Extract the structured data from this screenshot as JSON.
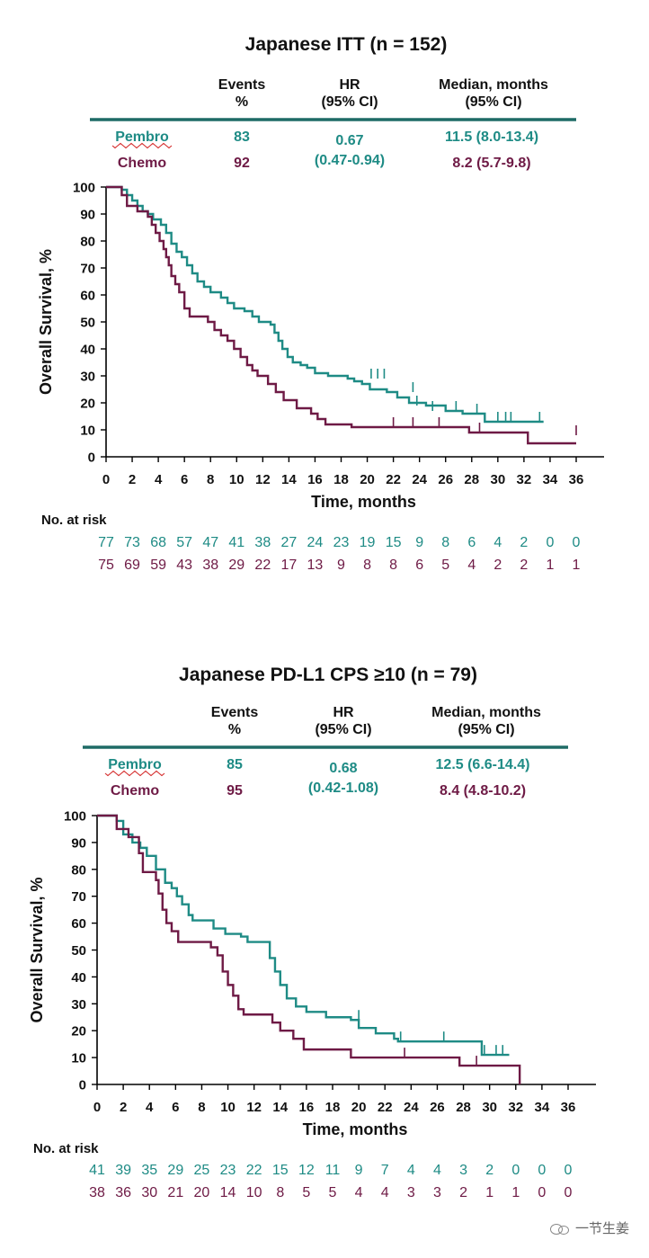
{
  "colors": {
    "pembro": "#1e8b85",
    "chemo": "#6e1a45",
    "rule": "#1e6b66",
    "text": "#111111"
  },
  "chart_data": [
    {
      "type": "line",
      "title": "Japanese ITT (n = 152)",
      "ylabel": "Overall Survival, %",
      "xlabel": "Time, months",
      "xlim": [
        0,
        36
      ],
      "ylim": [
        0,
        100
      ],
      "xticks": [
        "0",
        "2",
        "4",
        "6",
        "8",
        "10",
        "12",
        "14",
        "16",
        "18",
        "20",
        "22",
        "24",
        "26",
        "28",
        "30",
        "32",
        "34",
        "36"
      ],
      "yticks": [
        "0",
        "10",
        "20",
        "30",
        "40",
        "50",
        "60",
        "70",
        "80",
        "90",
        "100"
      ],
      "table": {
        "headers": {
          "events": "Events\n%",
          "hr": "HR\n(95% CI)",
          "median": "Median, months\n(95% CI)"
        },
        "hr_value": "0.67",
        "hr_ci": "(0.47-0.94)",
        "rows": [
          {
            "name": "Pembro",
            "events": "83",
            "median": "11.5 (8.0-13.4)"
          },
          {
            "name": "Chemo",
            "events": "92",
            "median": "8.2 (5.7-9.8)"
          }
        ]
      },
      "risk_label": "No. at risk",
      "risk": {
        "pembro": [
          "77",
          "73",
          "68",
          "57",
          "47",
          "41",
          "38",
          "27",
          "24",
          "23",
          "19",
          "15",
          "9",
          "8",
          "6",
          "4",
          "2",
          "0",
          "0"
        ],
        "chemo": [
          "75",
          "69",
          "59",
          "43",
          "38",
          "29",
          "22",
          "17",
          "13",
          "9",
          "8",
          "8",
          "6",
          "5",
          "4",
          "2",
          "2",
          "1",
          "1"
        ]
      },
      "series": [
        {
          "name": "Pembro",
          "points": [
            [
              0,
              100
            ],
            [
              1.2,
              99
            ],
            [
              1.6,
              97
            ],
            [
              2,
              95
            ],
            [
              2.4,
              93
            ],
            [
              2.8,
              91
            ],
            [
              3.2,
              90
            ],
            [
              3.6,
              88
            ],
            [
              4.2,
              86
            ],
            [
              4.6,
              83
            ],
            [
              5,
              79
            ],
            [
              5.4,
              76
            ],
            [
              5.8,
              74
            ],
            [
              6.2,
              71
            ],
            [
              6.6,
              68
            ],
            [
              7,
              65
            ],
            [
              7.5,
              63
            ],
            [
              8,
              61
            ],
            [
              8.8,
              59
            ],
            [
              9.3,
              57
            ],
            [
              9.8,
              55
            ],
            [
              10.6,
              54
            ],
            [
              11.2,
              52
            ],
            [
              11.7,
              50
            ],
            [
              12.6,
              49
            ],
            [
              12.9,
              46
            ],
            [
              13.2,
              43
            ],
            [
              13.5,
              40
            ],
            [
              13.9,
              37
            ],
            [
              14.3,
              35
            ],
            [
              14.9,
              34
            ],
            [
              15.4,
              33
            ],
            [
              16,
              31
            ],
            [
              17,
              30
            ],
            [
              18.5,
              29
            ],
            [
              19,
              28
            ],
            [
              19.6,
              27
            ],
            [
              20.2,
              25
            ],
            [
              21.5,
              24
            ],
            [
              22.3,
              22
            ],
            [
              23.2,
              20
            ],
            [
              24.5,
              19
            ],
            [
              26,
              17
            ],
            [
              27.3,
              16
            ],
            [
              29,
              13
            ],
            [
              33.5,
              13
            ]
          ],
          "censors": [
            [
              20.3,
              29
            ],
            [
              20.8,
              29
            ],
            [
              21.3,
              29
            ],
            [
              23.5,
              24
            ],
            [
              23.8,
              19
            ],
            [
              25,
              17
            ],
            [
              26.8,
              17
            ],
            [
              28.4,
              16
            ],
            [
              30,
              13
            ],
            [
              30.6,
              13
            ],
            [
              31,
              13
            ],
            [
              33.2,
              13
            ]
          ]
        },
        {
          "name": "Chemo",
          "points": [
            [
              0,
              100
            ],
            [
              1.2,
              97
            ],
            [
              1.6,
              93
            ],
            [
              2.4,
              91
            ],
            [
              3.2,
              89
            ],
            [
              3.5,
              86
            ],
            [
              3.8,
              83
            ],
            [
              4.1,
              80
            ],
            [
              4.4,
              77
            ],
            [
              4.6,
              74
            ],
            [
              4.8,
              71
            ],
            [
              5,
              67
            ],
            [
              5.3,
              64
            ],
            [
              5.6,
              61
            ],
            [
              6,
              55
            ],
            [
              6.4,
              52
            ],
            [
              7.8,
              50
            ],
            [
              8.3,
              47
            ],
            [
              8.8,
              45
            ],
            [
              9.3,
              43
            ],
            [
              9.8,
              40
            ],
            [
              10.3,
              37
            ],
            [
              10.8,
              34
            ],
            [
              11.2,
              32
            ],
            [
              11.6,
              30
            ],
            [
              12.4,
              27
            ],
            [
              13,
              24
            ],
            [
              13.6,
              21
            ],
            [
              14.6,
              18
            ],
            [
              15.7,
              16
            ],
            [
              16.2,
              14
            ],
            [
              16.8,
              12
            ],
            [
              18.8,
              11
            ],
            [
              27.8,
              9
            ],
            [
              32.3,
              5
            ],
            [
              36,
              5
            ]
          ],
          "censors": [
            [
              22,
              11
            ],
            [
              23.5,
              11
            ],
            [
              25.5,
              11
            ],
            [
              28.6,
              9
            ],
            [
              36,
              8
            ]
          ]
        }
      ]
    },
    {
      "type": "line",
      "title": "Japanese PD-L1 CPS ≥10 (n = 79)",
      "ylabel": "Overall Survival, %",
      "xlabel": "Time, months",
      "xlim": [
        0,
        36
      ],
      "ylim": [
        0,
        100
      ],
      "xticks": [
        "0",
        "2",
        "4",
        "6",
        "8",
        "10",
        "12",
        "14",
        "16",
        "18",
        "20",
        "22",
        "24",
        "26",
        "28",
        "30",
        "32",
        "34",
        "36"
      ],
      "yticks": [
        "0",
        "10",
        "20",
        "30",
        "40",
        "50",
        "60",
        "70",
        "80",
        "90",
        "100"
      ],
      "table": {
        "headers": {
          "events": "Events\n%",
          "hr": "HR\n(95% CI)",
          "median": "Median, months\n(95% CI)"
        },
        "hr_value": "0.68",
        "hr_ci": "(0.42-1.08)",
        "rows": [
          {
            "name": "Pembro",
            "events": "85",
            "median": "12.5 (6.6-14.4)"
          },
          {
            "name": "Chemo",
            "events": "95",
            "median": "8.4 (4.8-10.2)"
          }
        ]
      },
      "risk_label": "No. at risk",
      "risk": {
        "pembro": [
          "41",
          "39",
          "35",
          "29",
          "25",
          "23",
          "22",
          "15",
          "12",
          "11",
          "9",
          "7",
          "4",
          "4",
          "3",
          "2",
          "0",
          "0",
          "0"
        ],
        "chemo": [
          "38",
          "36",
          "30",
          "21",
          "20",
          "14",
          "10",
          "8",
          "5",
          "5",
          "4",
          "4",
          "3",
          "3",
          "2",
          "1",
          "1",
          "0",
          "0"
        ]
      },
      "series": [
        {
          "name": "Pembro",
          "points": [
            [
              0,
              100
            ],
            [
              1.5,
              98
            ],
            [
              2,
              93
            ],
            [
              2.7,
              90
            ],
            [
              3.3,
              88
            ],
            [
              3.8,
              85
            ],
            [
              4.5,
              80
            ],
            [
              5.2,
              75
            ],
            [
              5.7,
              73
            ],
            [
              6.1,
              70
            ],
            [
              6.5,
              67
            ],
            [
              7,
              63
            ],
            [
              7.3,
              61
            ],
            [
              8.9,
              58
            ],
            [
              9.8,
              56
            ],
            [
              11,
              55
            ],
            [
              11.5,
              53
            ],
            [
              12.7,
              53
            ],
            [
              13.2,
              47
            ],
            [
              13.6,
              42
            ],
            [
              14,
              37
            ],
            [
              14.5,
              32
            ],
            [
              15.2,
              29
            ],
            [
              16,
              27
            ],
            [
              17.5,
              25
            ],
            [
              19.4,
              24
            ],
            [
              20,
              21
            ],
            [
              21.3,
              19
            ],
            [
              22.7,
              17
            ],
            [
              23,
              16
            ],
            [
              29.4,
              11
            ],
            [
              31.5,
              11
            ]
          ],
          "censors": [
            [
              20,
              24
            ],
            [
              23.2,
              16
            ],
            [
              26.5,
              16
            ],
            [
              29.6,
              11
            ],
            [
              30.5,
              11
            ],
            [
              31,
              11
            ]
          ]
        },
        {
          "name": "Chemo",
          "points": [
            [
              0,
              100
            ],
            [
              1.5,
              95
            ],
            [
              2.4,
              92
            ],
            [
              3.2,
              86
            ],
            [
              3.5,
              79
            ],
            [
              4.5,
              76
            ],
            [
              4.7,
              71
            ],
            [
              5,
              65
            ],
            [
              5.3,
              60
            ],
            [
              5.7,
              57
            ],
            [
              6.2,
              53
            ],
            [
              8.7,
              51
            ],
            [
              9.2,
              48
            ],
            [
              9.6,
              42
            ],
            [
              10,
              37
            ],
            [
              10.4,
              33
            ],
            [
              10.8,
              28
            ],
            [
              11.2,
              26
            ],
            [
              13.4,
              23
            ],
            [
              14,
              20
            ],
            [
              15,
              17
            ],
            [
              15.8,
              13
            ],
            [
              19.4,
              10
            ],
            [
              27.7,
              7
            ],
            [
              32.3,
              0
            ]
          ],
          "censors": [
            [
              23.5,
              10
            ],
            [
              29,
              7
            ]
          ]
        }
      ]
    }
  ],
  "watermark": {
    "text": "一节生姜",
    "icon": "wechat-icon"
  }
}
